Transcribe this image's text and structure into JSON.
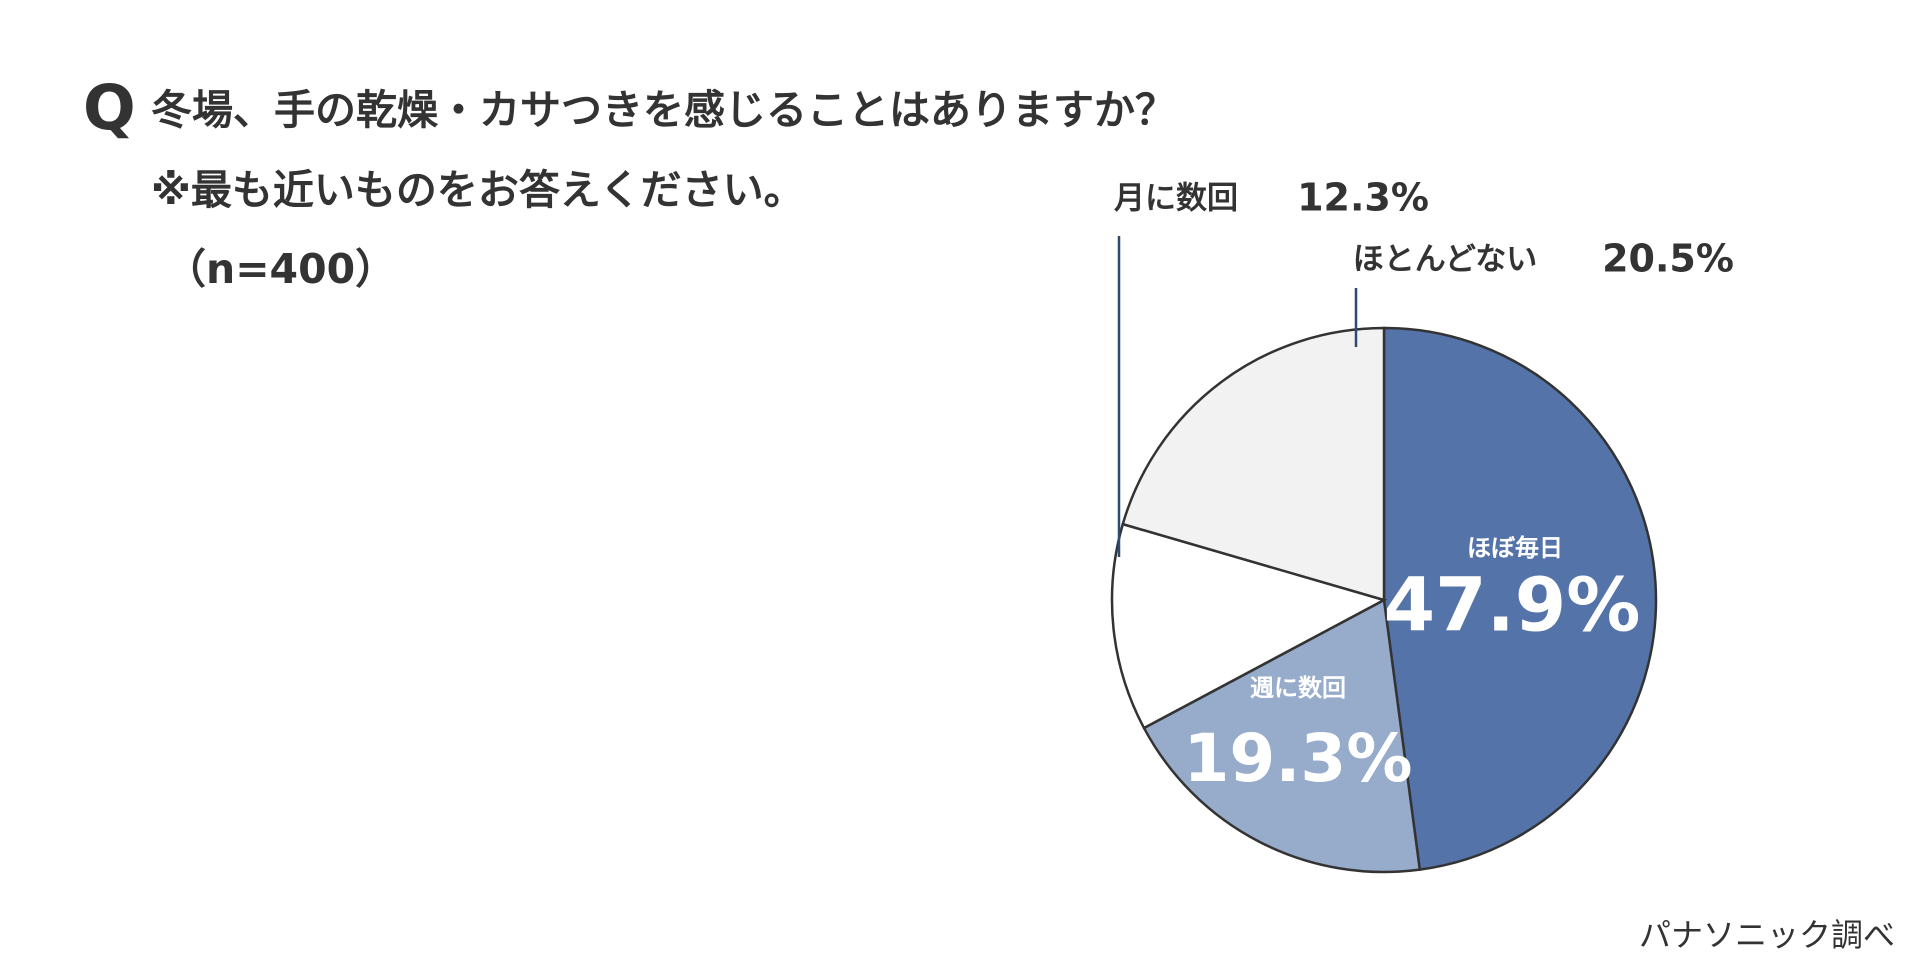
{
  "chart_data": {
    "type": "pie",
    "title_marker": "Q",
    "title": "冬場、手の乾燥・カサつきを感じることはありますか？",
    "notes": [
      "※最も近いものをお答えください。",
      "（n=400）"
    ],
    "source": "パナソニック調べ",
    "categories": [
      "ほぼ毎日",
      "週に数回",
      "月に数回",
      "ほとんどない"
    ],
    "values": [
      47.9,
      19.3,
      12.3,
      20.5
    ],
    "value_labels": [
      "47.9%",
      "19.3%",
      "12.3%",
      "20.5%"
    ],
    "colors": [
      "#5473a8",
      "#97abcb",
      "#ffffff",
      "#f2f2f2"
    ]
  }
}
